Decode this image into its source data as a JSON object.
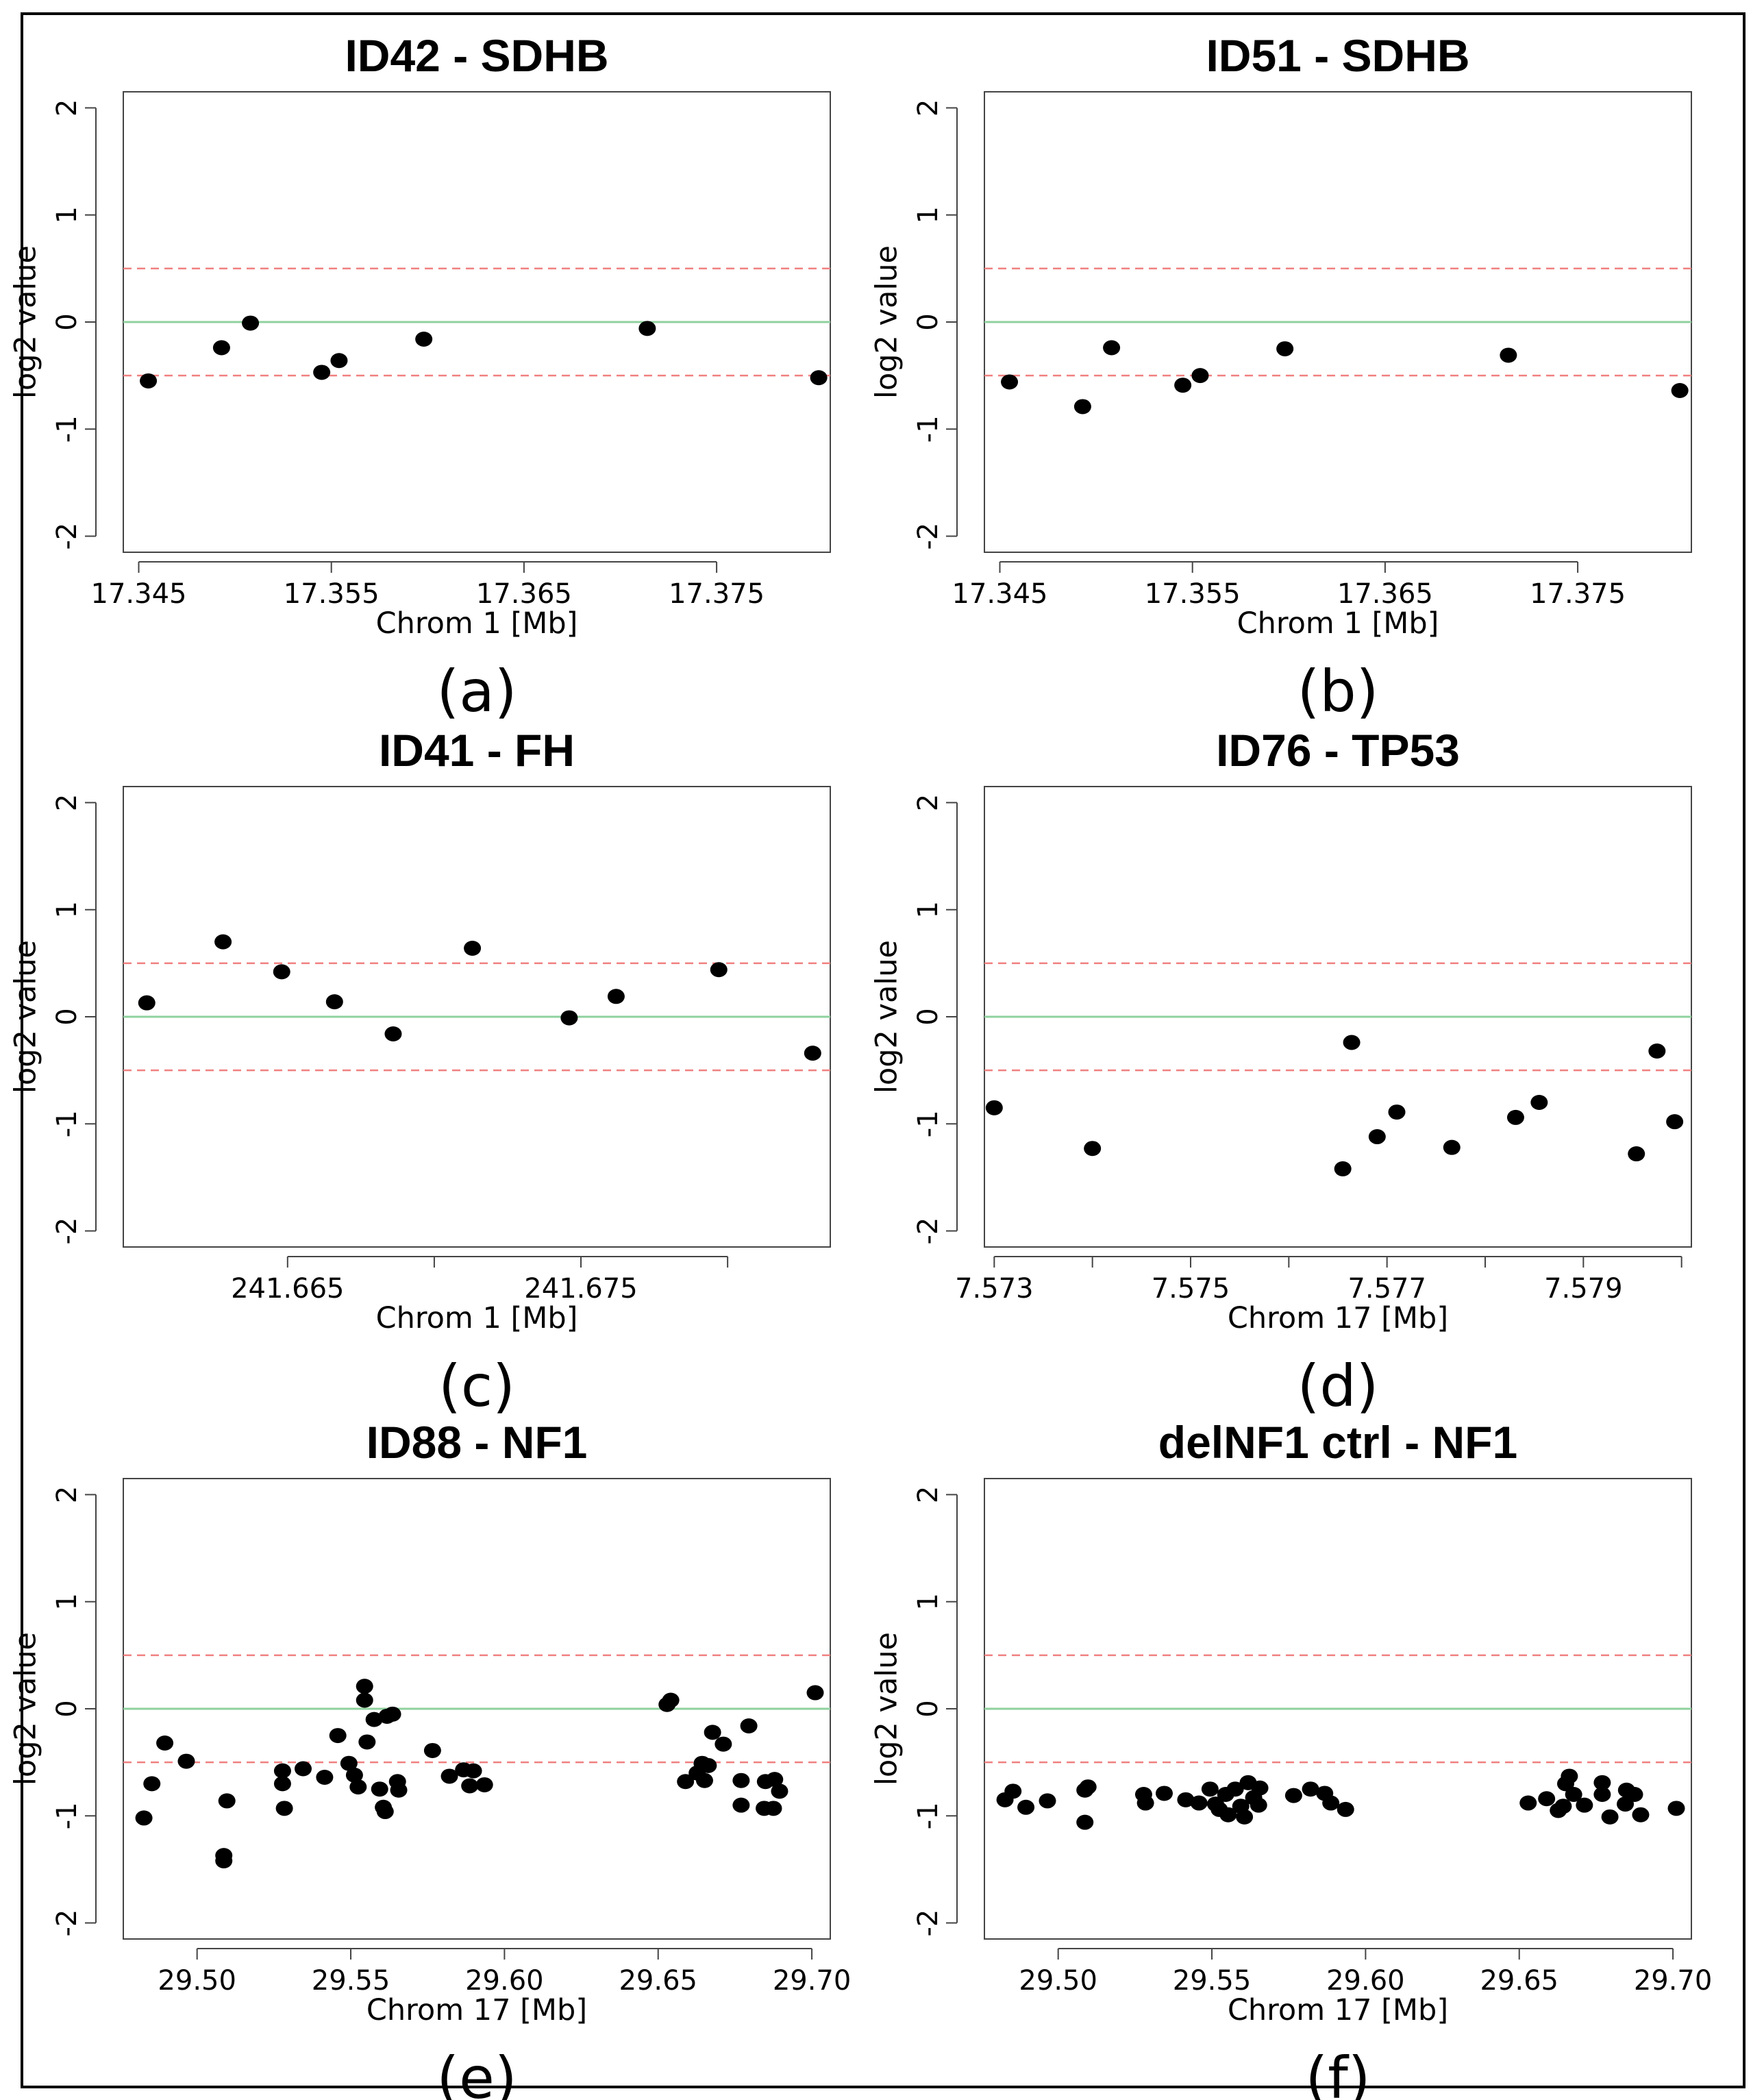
{
  "colors": {
    "threshold": "#f08080",
    "baseline": "#8fd19e",
    "point": "#000000",
    "axis": "#444444"
  },
  "chart_data": [
    {
      "type": "scatter",
      "panel_label": "(a)",
      "title": "ID42  -  SDHB",
      "xlabel": "Chrom 1 [Mb]",
      "ylabel": "log2 value",
      "xlim": [
        17.3442,
        17.3809
      ],
      "ylim": [
        -2.15,
        2.15
      ],
      "xticks": [
        17.345,
        17.355,
        17.365,
        17.375
      ],
      "xtick_labels": [
        "17.345",
        "17.355",
        "17.365",
        "17.375"
      ],
      "yticks": [
        2,
        1,
        0,
        -1,
        -2
      ],
      "ytick_labels": [
        "2",
        "1",
        "0",
        "-1",
        "-2"
      ],
      "baseline": 0,
      "thresholds": [
        0.5,
        -0.5
      ],
      "points": [
        [
          17.3455,
          -0.55
        ],
        [
          17.3493,
          -0.24
        ],
        [
          17.3508,
          -0.01
        ],
        [
          17.3545,
          -0.47
        ],
        [
          17.3554,
          -0.36
        ],
        [
          17.3598,
          -0.16
        ],
        [
          17.3714,
          -0.06
        ],
        [
          17.3803,
          -0.52
        ]
      ]
    },
    {
      "type": "scatter",
      "panel_label": "(b)",
      "title": "ID51  -  SDHB",
      "xlabel": "Chrom 1 [Mb]",
      "ylabel": "log2 value",
      "xlim": [
        17.3442,
        17.3809
      ],
      "ylim": [
        -2.15,
        2.15
      ],
      "xticks": [
        17.345,
        17.355,
        17.365,
        17.375
      ],
      "xtick_labels": [
        "17.345",
        "17.355",
        "17.365",
        "17.375"
      ],
      "yticks": [
        2,
        1,
        0,
        -1,
        -2
      ],
      "ytick_labels": [
        "2",
        "1",
        "0",
        "-1",
        "-2"
      ],
      "baseline": 0,
      "thresholds": [
        0.5,
        -0.5
      ],
      "points": [
        [
          17.3455,
          -0.56
        ],
        [
          17.3493,
          -0.79
        ],
        [
          17.3508,
          -0.24
        ],
        [
          17.3545,
          -0.59
        ],
        [
          17.3554,
          -0.5
        ],
        [
          17.3598,
          -0.25
        ],
        [
          17.3714,
          -0.31
        ],
        [
          17.3803,
          -0.64
        ]
      ]
    },
    {
      "type": "scatter",
      "panel_label": "(c)",
      "title": "ID41  -  FH",
      "xlabel": "Chrom 1 [Mb]",
      "ylabel": "log2 value",
      "xlim": [
        241.6594,
        241.6835
      ],
      "ylim": [
        -2.15,
        2.15
      ],
      "xticks": [
        241.665,
        241.67,
        241.675,
        241.68
      ],
      "xtick_labels": [
        "241.665",
        "",
        "241.675",
        ""
      ],
      "yticks": [
        2,
        1,
        0,
        -1,
        -2
      ],
      "ytick_labels": [
        "2",
        "1",
        "0",
        "-1",
        "-2"
      ],
      "baseline": 0,
      "thresholds": [
        0.5,
        -0.5
      ],
      "points": [
        [
          241.6602,
          0.13
        ],
        [
          241.6628,
          0.7
        ],
        [
          241.6648,
          0.42
        ],
        [
          241.6666,
          0.14
        ],
        [
          241.6686,
          -0.16
        ],
        [
          241.6713,
          0.64
        ],
        [
          241.6746,
          -0.01
        ],
        [
          241.6762,
          0.19
        ],
        [
          241.6797,
          0.44
        ],
        [
          241.6829,
          -0.34
        ]
      ]
    },
    {
      "type": "scatter",
      "panel_label": "(d)",
      "title": "ID76  -  TP53",
      "xlabel": "Chrom 17 [Mb]",
      "ylabel": "log2 value",
      "xlim": [
        7.5729,
        7.5801
      ],
      "ylim": [
        -2.15,
        2.15
      ],
      "xticks": [
        7.573,
        7.574,
        7.575,
        7.576,
        7.577,
        7.578,
        7.579,
        7.58
      ],
      "xtick_labels": [
        "7.573",
        "",
        "7.575",
        "",
        "7.577",
        "",
        "7.579",
        ""
      ],
      "yticks": [
        2,
        1,
        0,
        -1,
        -2
      ],
      "ytick_labels": [
        "2",
        "1",
        "0",
        "-1",
        "-2"
      ],
      "baseline": 0,
      "thresholds": [
        0.5,
        -0.5
      ],
      "points": [
        [
          7.573,
          -0.85
        ],
        [
          7.574,
          -1.23
        ],
        [
          7.57655,
          -1.42
        ],
        [
          7.57664,
          -0.24
        ],
        [
          7.5769,
          -1.12
        ],
        [
          7.5771,
          -0.89
        ],
        [
          7.57766,
          -1.22
        ],
        [
          7.57831,
          -0.94
        ],
        [
          7.57855,
          -0.8
        ],
        [
          7.57954,
          -1.28
        ],
        [
          7.57975,
          -0.32
        ],
        [
          7.57993,
          -0.98
        ]
      ]
    },
    {
      "type": "scatter",
      "panel_label": "(e)",
      "title": "ID88  -  NF1",
      "xlabel": "Chrom 17 [Mb]",
      "ylabel": "log2 value",
      "xlim": [
        29.476,
        29.706
      ],
      "ylim": [
        -2.15,
        2.15
      ],
      "xticks": [
        29.5,
        29.55,
        29.6,
        29.65,
        29.7
      ],
      "xtick_labels": [
        "29.50",
        "29.55",
        "29.60",
        "29.65",
        "29.70"
      ],
      "yticks": [
        2,
        1,
        0,
        -1,
        -2
      ],
      "ytick_labels": [
        "2",
        "1",
        "0",
        "-1",
        "-2"
      ],
      "baseline": 0,
      "thresholds": [
        0.5,
        -0.5
      ],
      "points": [
        [
          29.4827,
          -1.02
        ],
        [
          29.4853,
          -0.7
        ],
        [
          29.4895,
          -0.32
        ],
        [
          29.4965,
          -0.49
        ],
        [
          29.5087,
          -1.37
        ],
        [
          29.5087,
          -1.42
        ],
        [
          29.5097,
          -0.86
        ],
        [
          29.5278,
          -0.58
        ],
        [
          29.5278,
          -0.7
        ],
        [
          29.5284,
          -0.93
        ],
        [
          29.5345,
          -0.56
        ],
        [
          29.5415,
          -0.64
        ],
        [
          29.5458,
          -0.25
        ],
        [
          29.5494,
          -0.51
        ],
        [
          29.5512,
          -0.62
        ],
        [
          29.5524,
          -0.73
        ],
        [
          29.5545,
          0.21
        ],
        [
          29.5545,
          0.08
        ],
        [
          29.5553,
          -0.31
        ],
        [
          29.5576,
          -0.1
        ],
        [
          29.5594,
          -0.75
        ],
        [
          29.5606,
          -0.92
        ],
        [
          29.5612,
          -0.96
        ],
        [
          29.5618,
          -0.07
        ],
        [
          29.5636,
          -0.05
        ],
        [
          29.5652,
          -0.68
        ],
        [
          29.5656,
          -0.76
        ],
        [
          29.5766,
          -0.39
        ],
        [
          29.5821,
          -0.63
        ],
        [
          29.5867,
          -0.57
        ],
        [
          29.5887,
          -0.72
        ],
        [
          29.5899,
          -0.58
        ],
        [
          29.5935,
          -0.71
        ],
        [
          29.6529,
          0.04
        ],
        [
          29.6541,
          0.08
        ],
        [
          29.6589,
          -0.68
        ],
        [
          29.6627,
          -0.6
        ],
        [
          29.6643,
          -0.51
        ],
        [
          29.6651,
          -0.67
        ],
        [
          29.6663,
          -0.53
        ],
        [
          29.6677,
          -0.22
        ],
        [
          29.6712,
          -0.33
        ],
        [
          29.677,
          -0.67
        ],
        [
          29.677,
          -0.9
        ],
        [
          29.6795,
          -0.16
        ],
        [
          29.6845,
          -0.93
        ],
        [
          29.6849,
          -0.68
        ],
        [
          29.6875,
          -0.93
        ],
        [
          29.6879,
          -0.66
        ],
        [
          29.6895,
          -0.77
        ],
        [
          29.7011,
          0.15
        ]
      ]
    },
    {
      "type": "scatter",
      "panel_label": "(f)",
      "title": "delNF1 ctrl  -  NF1",
      "xlabel": "Chrom 17 [Mb]",
      "ylabel": "log2 value",
      "xlim": [
        29.476,
        29.706
      ],
      "ylim": [
        -2.15,
        2.15
      ],
      "xticks": [
        29.5,
        29.55,
        29.6,
        29.65,
        29.7
      ],
      "xtick_labels": [
        "29.50",
        "29.55",
        "29.60",
        "29.65",
        "29.70"
      ],
      "yticks": [
        2,
        1,
        0,
        -1,
        -2
      ],
      "ytick_labels": [
        "2",
        "1",
        "0",
        "-1",
        "-2"
      ],
      "baseline": 0,
      "thresholds": [
        0.5,
        -0.5
      ],
      "points": [
        [
          29.4827,
          -0.85
        ],
        [
          29.4853,
          -0.77
        ],
        [
          29.4895,
          -0.92
        ],
        [
          29.4965,
          -0.86
        ],
        [
          29.5087,
          -0.76
        ],
        [
          29.5087,
          -1.06
        ],
        [
          29.5097,
          -0.73
        ],
        [
          29.5278,
          -0.8
        ],
        [
          29.5284,
          -0.88
        ],
        [
          29.5345,
          -0.79
        ],
        [
          29.5415,
          -0.85
        ],
        [
          29.5458,
          -0.88
        ],
        [
          29.5494,
          -0.75
        ],
        [
          29.5512,
          -0.89
        ],
        [
          29.5524,
          -0.94
        ],
        [
          29.5545,
          -0.8
        ],
        [
          29.5553,
          -0.99
        ],
        [
          29.5576,
          -0.75
        ],
        [
          29.5594,
          -0.91
        ],
        [
          29.5606,
          -1.01
        ],
        [
          29.5618,
          -0.69
        ],
        [
          29.5636,
          -0.83
        ],
        [
          29.5656,
          -0.74
        ],
        [
          29.5652,
          -0.9
        ],
        [
          29.5766,
          -0.81
        ],
        [
          29.5821,
          -0.75
        ],
        [
          29.5867,
          -0.79
        ],
        [
          29.5887,
          -0.88
        ],
        [
          29.5935,
          -0.94
        ],
        [
          29.6529,
          -0.88
        ],
        [
          29.6589,
          -0.84
        ],
        [
          29.6627,
          -0.95
        ],
        [
          29.6643,
          -0.91
        ],
        [
          29.6651,
          -0.7
        ],
        [
          29.6663,
          -0.63
        ],
        [
          29.6677,
          -0.8
        ],
        [
          29.6712,
          -0.9
        ],
        [
          29.677,
          -0.69
        ],
        [
          29.677,
          -0.8
        ],
        [
          29.6795,
          -1.01
        ],
        [
          29.6845,
          -0.89
        ],
        [
          29.6849,
          -0.76
        ],
        [
          29.6875,
          -0.8
        ],
        [
          29.6895,
          -0.99
        ],
        [
          29.7011,
          -0.93
        ]
      ]
    }
  ]
}
